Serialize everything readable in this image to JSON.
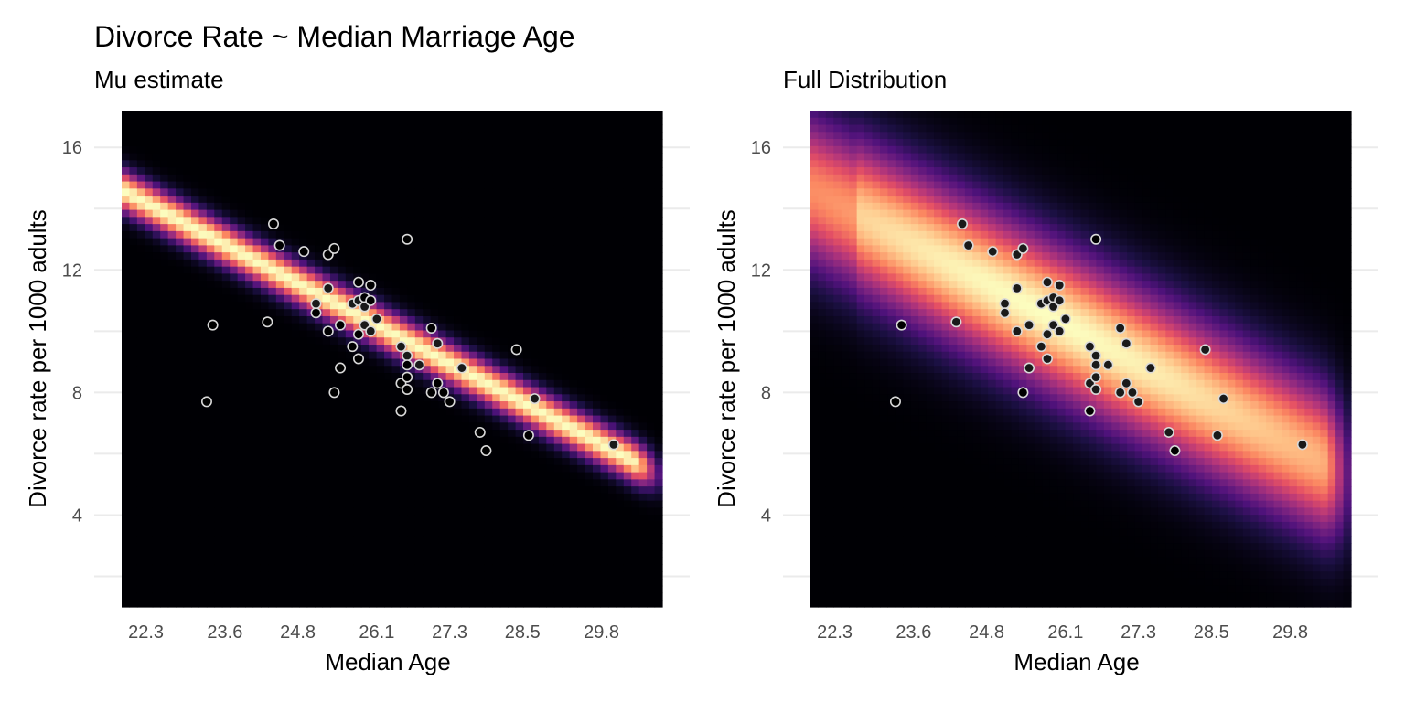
{
  "title": "Divorce Rate ~ Median Marriage Age",
  "chart_data": [
    {
      "type": "heatmap",
      "subtitle": "Mu estimate",
      "xlabel": "Median Age",
      "ylabel": "Divorce rate per 1000 adults",
      "xlim": [
        21.9,
        30.8
      ],
      "ylim": [
        1.0,
        17.2
      ],
      "x_ticks": [
        "22.3",
        "23.6",
        "24.8",
        "26.1",
        "27.3",
        "28.5",
        "29.8"
      ],
      "y_ticks": [
        "4",
        "8",
        "12",
        "16"
      ],
      "grid": true,
      "colormap": "magma",
      "density": {
        "intercept": 37.6,
        "slope": -1.05,
        "sd": 0.42
      },
      "point_fill_in_band": "#1a1a1a",
      "point_fill_out_band": "#000000",
      "point_stroke": "#d9d9d9"
    },
    {
      "type": "heatmap",
      "subtitle": "Full Distribution",
      "xlabel": "Median Age",
      "ylabel": "Divorce rate per 1000 adults",
      "xlim": [
        21.9,
        30.8
      ],
      "ylim": [
        1.0,
        17.2
      ],
      "x_ticks": [
        "22.3",
        "23.6",
        "24.8",
        "26.1",
        "27.3",
        "28.5",
        "29.8"
      ],
      "y_ticks": [
        "4",
        "8",
        "12",
        "16"
      ],
      "grid": true,
      "colormap": "magma",
      "density": {
        "intercept": 37.6,
        "slope": -1.05,
        "sd": 1.55
      },
      "point_fill_in_band": "#1a1a1a",
      "point_fill_out_band": "#000000",
      "point_stroke": "#d9d9d9"
    }
  ],
  "points": [
    {
      "x": 23.3,
      "y": 7.7
    },
    {
      "x": 23.4,
      "y": 10.2
    },
    {
      "x": 24.3,
      "y": 10.3
    },
    {
      "x": 24.4,
      "y": 13.5
    },
    {
      "x": 24.5,
      "y": 12.8
    },
    {
      "x": 24.9,
      "y": 12.6
    },
    {
      "x": 25.1,
      "y": 10.9
    },
    {
      "x": 25.1,
      "y": 10.6
    },
    {
      "x": 25.3,
      "y": 12.5
    },
    {
      "x": 25.3,
      "y": 11.4
    },
    {
      "x": 25.3,
      "y": 10.0
    },
    {
      "x": 25.4,
      "y": 12.7
    },
    {
      "x": 25.4,
      "y": 8.0
    },
    {
      "x": 25.5,
      "y": 10.2
    },
    {
      "x": 25.5,
      "y": 8.8
    },
    {
      "x": 25.7,
      "y": 10.9
    },
    {
      "x": 25.7,
      "y": 9.5
    },
    {
      "x": 25.8,
      "y": 11.6
    },
    {
      "x": 25.8,
      "y": 11.0
    },
    {
      "x": 25.8,
      "y": 9.9
    },
    {
      "x": 25.8,
      "y": 9.1
    },
    {
      "x": 25.9,
      "y": 11.1
    },
    {
      "x": 25.9,
      "y": 10.8
    },
    {
      "x": 25.9,
      "y": 10.2
    },
    {
      "x": 26.0,
      "y": 11.5
    },
    {
      "x": 26.0,
      "y": 11.0
    },
    {
      "x": 26.0,
      "y": 10.0
    },
    {
      "x": 26.1,
      "y": 10.4
    },
    {
      "x": 26.5,
      "y": 9.5
    },
    {
      "x": 26.5,
      "y": 8.3
    },
    {
      "x": 26.5,
      "y": 7.4
    },
    {
      "x": 26.6,
      "y": 13.0
    },
    {
      "x": 26.6,
      "y": 9.2
    },
    {
      "x": 26.6,
      "y": 8.9
    },
    {
      "x": 26.6,
      "y": 8.5
    },
    {
      "x": 26.6,
      "y": 8.1
    },
    {
      "x": 26.8,
      "y": 8.9
    },
    {
      "x": 27.0,
      "y": 10.1
    },
    {
      "x": 27.0,
      "y": 8.0
    },
    {
      "x": 27.1,
      "y": 9.6
    },
    {
      "x": 27.1,
      "y": 8.3
    },
    {
      "x": 27.2,
      "y": 8.0
    },
    {
      "x": 27.3,
      "y": 7.7
    },
    {
      "x": 27.5,
      "y": 8.8
    },
    {
      "x": 27.8,
      "y": 6.7
    },
    {
      "x": 27.9,
      "y": 6.1
    },
    {
      "x": 28.4,
      "y": 9.4
    },
    {
      "x": 28.6,
      "y": 6.6
    },
    {
      "x": 28.7,
      "y": 7.8
    },
    {
      "x": 30.0,
      "y": 6.3
    }
  ]
}
